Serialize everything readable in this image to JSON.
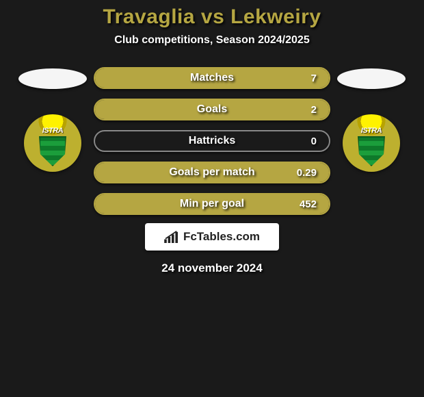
{
  "title": "Travaglia vs Lekweiry",
  "subtitle": "Club competitions, Season 2024/2025",
  "date": "24 november 2024",
  "brand": {
    "text": "FcTables.com",
    "icon_color": "#222222"
  },
  "colors": {
    "background": "#1a1a1a",
    "title_color": "#b5a642",
    "text_color": "#ffffff",
    "text_shadow": "rgba(0,0,0,0.9)",
    "pill_border": "#b5a642",
    "pill_border_alt": "#888888",
    "pill_fill": "#b5a642",
    "logo_bg": "#bdb02f",
    "logo_shield": "#1b9e3b",
    "brand_bg": "#ffffff",
    "brand_text": "#222222"
  },
  "club_logo": {
    "name": "ISTRA",
    "badge_text": "ISTRA"
  },
  "stats": [
    {
      "label": "Matches",
      "value_right": "7",
      "fill_pct": 100,
      "highlight": true
    },
    {
      "label": "Goals",
      "value_right": "2",
      "fill_pct": 100,
      "highlight": true
    },
    {
      "label": "Hattricks",
      "value_right": "0",
      "fill_pct": 0,
      "highlight": false
    },
    {
      "label": "Goals per match",
      "value_right": "0.29",
      "fill_pct": 100,
      "highlight": true
    },
    {
      "label": "Min per goal",
      "value_right": "452",
      "fill_pct": 100,
      "highlight": true
    }
  ]
}
